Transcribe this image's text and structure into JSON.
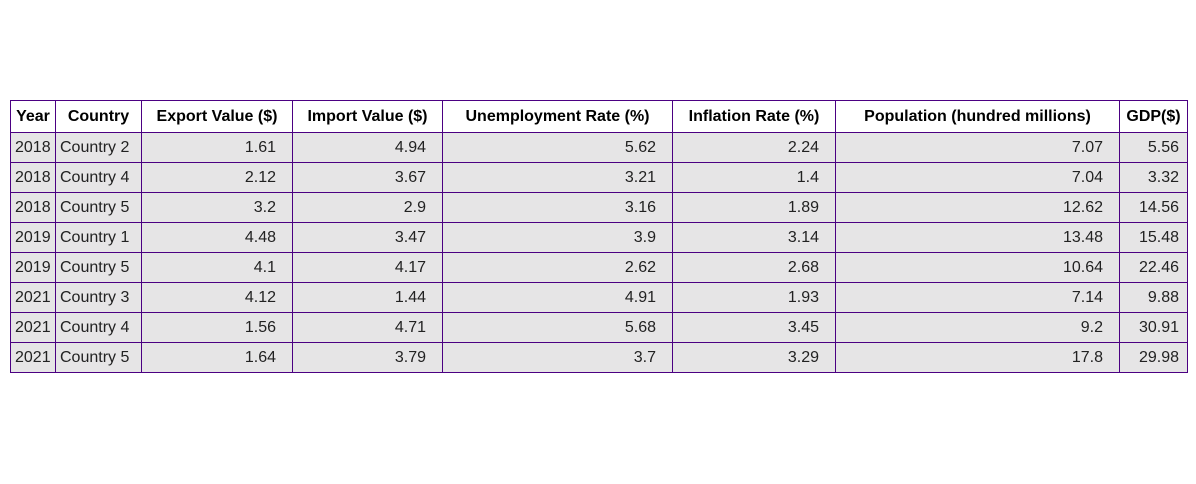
{
  "chart_data": {
    "type": "table",
    "columns": [
      "Year",
      "Country",
      "Export Value ($)",
      "Import Value ($)",
      "Unemployment Rate (%)",
      "Inflation Rate (%)",
      "Population (hundred millions)",
      "GDP($)"
    ],
    "rows": [
      [
        "2018",
        "Country 2",
        "1.61",
        "4.94",
        "5.62",
        "2.24",
        "7.07",
        "5.56"
      ],
      [
        "2018",
        "Country 4",
        "2.12",
        "3.67",
        "3.21",
        "1.4",
        "7.04",
        "3.32"
      ],
      [
        "2018",
        "Country 5",
        "3.2",
        "2.9",
        "3.16",
        "1.89",
        "12.62",
        "14.56"
      ],
      [
        "2019",
        "Country 1",
        "4.48",
        "3.47",
        "3.9",
        "3.14",
        "13.48",
        "15.48"
      ],
      [
        "2019",
        "Country 5",
        "4.1",
        "4.17",
        "2.62",
        "2.68",
        "10.64",
        "22.46"
      ],
      [
        "2021",
        "Country 3",
        "4.12",
        "1.44",
        "4.91",
        "1.93",
        "7.14",
        "9.88"
      ],
      [
        "2021",
        "Country 4",
        "1.56",
        "4.71",
        "5.68",
        "3.45",
        "9.2",
        "30.91"
      ],
      [
        "2021",
        "Country 5",
        "1.64",
        "3.79",
        "3.7",
        "3.29",
        "17.8",
        "29.98"
      ]
    ],
    "header_background": "#ffffff",
    "cell_background": "#e6e5e6",
    "border_color": "#4b0082"
  }
}
